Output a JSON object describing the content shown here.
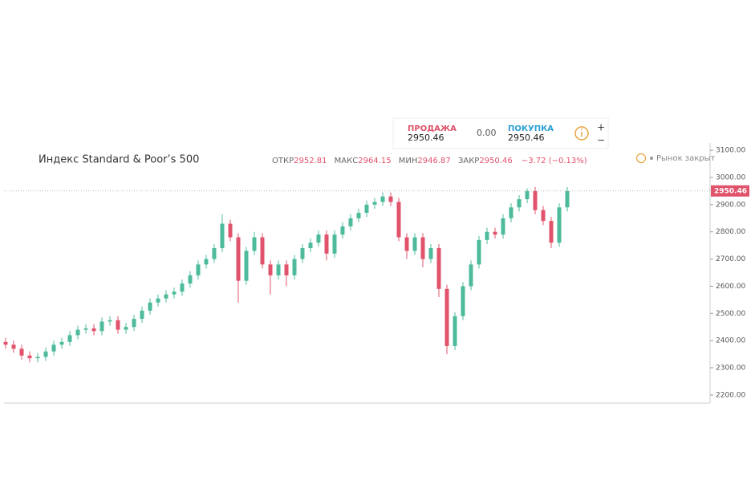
{
  "quote_panel": {
    "sell_label": "ПРОДАЖА",
    "sell_price": 2950.46,
    "spread": "0.00",
    "buy_label": "ПОКУПКА",
    "buy_price": 2950.46,
    "plus": "+",
    "minus": "−"
  },
  "status": "Рынок закрыт",
  "ohlc": {
    "open_label": "ОТКР",
    "open": 2952.81,
    "high_label": "МАКС",
    "high": 2964.15,
    "low_label": "МИН",
    "low": 2946.87,
    "close_label": "ЗАКР",
    "close": 2950.46,
    "change": "−3.72 (−0.13%)"
  },
  "chart_data": {
    "type": "candlestick",
    "title": "Индекс Standard & Poor’s 500",
    "up_color": "#4dbb9b",
    "down_color": "#e0536b",
    "open": [
      2395,
      2385,
      2370,
      2345,
      2335,
      2340,
      2360,
      2385,
      2395,
      2420,
      2440,
      2445,
      2435,
      2470,
      2475,
      2440,
      2450,
      2480,
      2510,
      2540,
      2555,
      2570,
      2580,
      2610,
      2640,
      2680,
      2700,
      2740,
      2830,
      2780,
      2620,
      2730,
      2780,
      2680,
      2640,
      2680,
      2640,
      2700,
      2740,
      2760,
      2790,
      2720,
      2790,
      2820,
      2850,
      2870,
      2900,
      2910,
      2930,
      2910,
      2780,
      2730,
      2780,
      2700,
      2740,
      2590,
      2380,
      2490,
      2600,
      2680,
      2770,
      2800,
      2790,
      2850,
      2890,
      2920,
      2950,
      2880,
      2840,
      2760,
      2890
    ],
    "high": [
      2410,
      2400,
      2385,
      2360,
      2355,
      2375,
      2400,
      2410,
      2435,
      2455,
      2460,
      2460,
      2485,
      2490,
      2490,
      2465,
      2495,
      2525,
      2555,
      2570,
      2585,
      2595,
      2625,
      2655,
      2695,
      2715,
      2755,
      2865,
      2845,
      2795,
      2745,
      2800,
      2795,
      2695,
      2695,
      2695,
      2715,
      2755,
      2775,
      2805,
      2805,
      2805,
      2835,
      2865,
      2885,
      2915,
      2925,
      2945,
      2945,
      2925,
      2795,
      2795,
      2795,
      2755,
      2755,
      2605,
      2505,
      2615,
      2695,
      2785,
      2815,
      2815,
      2865,
      2905,
      2935,
      2960,
      2965,
      2895,
      2855,
      2905,
      2965
    ],
    "low": [
      2370,
      2355,
      2330,
      2320,
      2320,
      2325,
      2345,
      2370,
      2380,
      2405,
      2425,
      2420,
      2420,
      2455,
      2425,
      2425,
      2435,
      2465,
      2495,
      2525,
      2540,
      2555,
      2565,
      2595,
      2625,
      2665,
      2685,
      2725,
      2765,
      2540,
      2605,
      2715,
      2665,
      2570,
      2625,
      2600,
      2625,
      2685,
      2725,
      2745,
      2695,
      2705,
      2775,
      2805,
      2835,
      2855,
      2885,
      2895,
      2895,
      2765,
      2700,
      2715,
      2670,
      2685,
      2560,
      2350,
      2365,
      2475,
      2585,
      2665,
      2755,
      2775,
      2775,
      2835,
      2875,
      2905,
      2865,
      2825,
      2740,
      2745,
      2875
    ],
    "close": [
      2385,
      2370,
      2345,
      2335,
      2340,
      2360,
      2385,
      2395,
      2420,
      2440,
      2445,
      2435,
      2470,
      2475,
      2440,
      2450,
      2480,
      2510,
      2540,
      2555,
      2570,
      2580,
      2610,
      2640,
      2680,
      2700,
      2740,
      2830,
      2780,
      2620,
      2730,
      2780,
      2680,
      2640,
      2680,
      2640,
      2700,
      2740,
      2760,
      2790,
      2720,
      2790,
      2820,
      2850,
      2870,
      2900,
      2910,
      2930,
      2910,
      2780,
      2730,
      2780,
      2700,
      2740,
      2590,
      2380,
      2490,
      2600,
      2680,
      2770,
      2800,
      2790,
      2850,
      2890,
      2920,
      2950,
      2880,
      2840,
      2760,
      2890,
      2950.46
    ],
    "last_price": 2950.46,
    "last_price_color": "#e0536b",
    "ylim": [
      2170,
      3127
    ],
    "yticks": [
      {
        "value": 2200,
        "label": "2200.00"
      },
      {
        "value": 2300,
        "label": "2300.00"
      },
      {
        "value": 2400,
        "label": "2400.00"
      },
      {
        "value": 2500,
        "label": "2500.00"
      },
      {
        "value": 2600,
        "label": "2600.00"
      },
      {
        "value": 2700,
        "label": "2700.00"
      },
      {
        "value": 2800,
        "label": "2800.00"
      },
      {
        "value": 2900,
        "label": "2900.00"
      },
      {
        "value": 3000,
        "label": "3000.00"
      },
      {
        "value": 3100,
        "label": "3100.00"
      }
    ]
  }
}
